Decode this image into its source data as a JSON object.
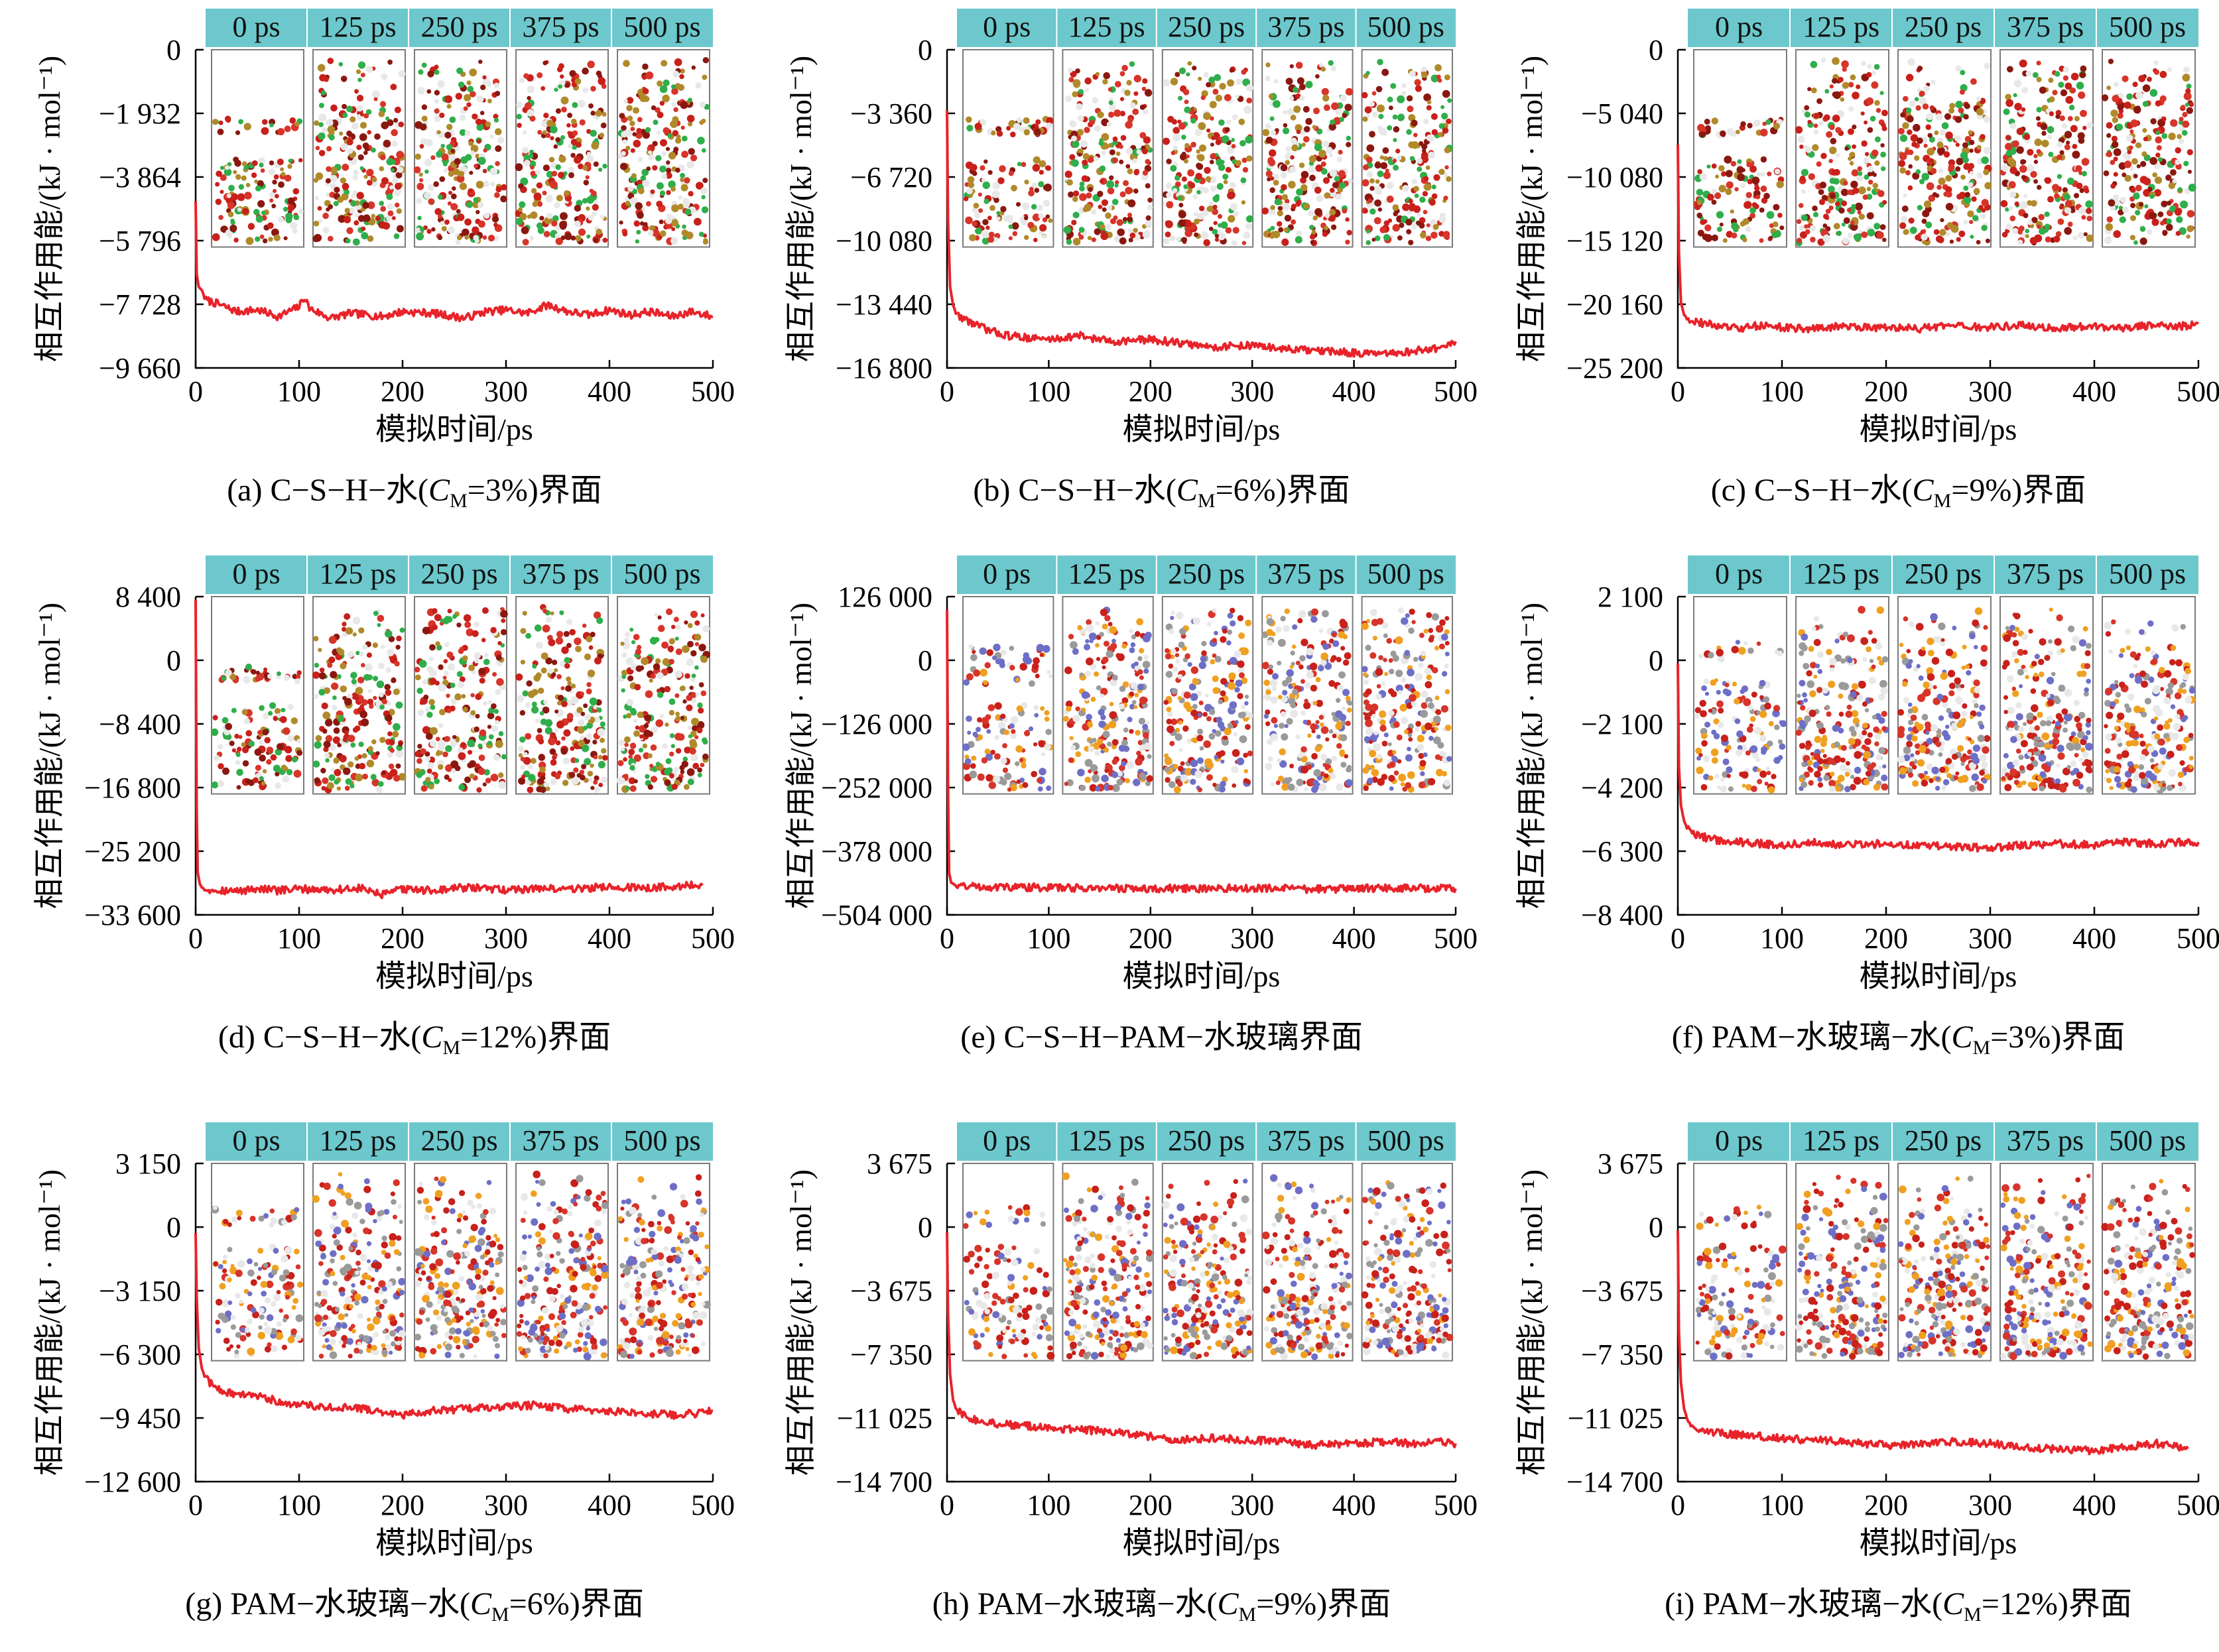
{
  "figure": {
    "common": {
      "xlabel": "模拟时间/ps",
      "ylabel": "相互作用能/(kJ · mol⁻¹)",
      "x_ticks": [
        "0",
        "100",
        "200",
        "300",
        "400",
        "500"
      ],
      "snapshot_labels": [
        "0 ps",
        "125 ps",
        "250 ps",
        "375 ps",
        "500 ps"
      ],
      "line_color": "#e8232a",
      "snapshot_bar_color": "#6cc8cc"
    }
  },
  "chart_data": [
    {
      "panel": "a",
      "type": "line",
      "caption_parts": [
        "(a) C−S−H−水(",
        "C",
        "M",
        "=3%)界面"
      ],
      "xlabel": "模拟时间/ps",
      "ylabel": "相互作用能/(kJ · mol⁻¹)",
      "xlim": [
        0,
        500
      ],
      "ylim": [
        -9660,
        0
      ],
      "y_tick_values": [
        0,
        -1932,
        -3864,
        -5796,
        -7728,
        -9660
      ],
      "y_tick_labels": [
        "0",
        "−1 932",
        "−3 864",
        "−5 796",
        "−7 728",
        "−9 660"
      ],
      "series": [
        {
          "x": [
            0,
            1,
            3,
            6,
            10,
            20,
            40,
            60,
            80,
            100,
            105,
            110,
            130,
            150,
            180,
            200,
            230,
            260,
            280,
            300,
            320,
            340,
            360,
            380,
            400,
            420,
            440,
            460,
            480,
            500
          ],
          "y": [
            -4600,
            -6800,
            -7200,
            -7300,
            -7600,
            -7700,
            -7950,
            -7900,
            -8100,
            -7800,
            -7500,
            -7850,
            -8150,
            -8000,
            -8100,
            -7950,
            -8000,
            -8150,
            -7950,
            -7900,
            -8000,
            -7750,
            -7950,
            -8050,
            -7900,
            -8050,
            -7950,
            -8100,
            -7950,
            -8100
          ]
        }
      ],
      "snapshots": {
        "labels": [
          "0 ps",
          "125 ps",
          "250 ps",
          "375 ps",
          "500 ps"
        ],
        "scheme": "csh"
      }
    },
    {
      "panel": "b",
      "type": "line",
      "caption_parts": [
        "(b) C−S−H−水(",
        "C",
        "M",
        "=6%)界面"
      ],
      "xlabel": "模拟时间/ps",
      "ylabel": "相互作用能/(kJ · mol⁻¹)",
      "xlim": [
        0,
        500
      ],
      "ylim": [
        -16800,
        0
      ],
      "y_tick_values": [
        0,
        -3360,
        -6720,
        -10080,
        -13440,
        -16800
      ],
      "y_tick_labels": [
        "0",
        "−3 360",
        "−6 720",
        "−10 080",
        "−13 440",
        "−16 800"
      ],
      "series": [
        {
          "x": [
            0,
            1,
            3,
            6,
            10,
            20,
            40,
            60,
            80,
            100,
            130,
            160,
            200,
            230,
            260,
            300,
            330,
            360,
            400,
            430,
            460,
            490,
            500
          ],
          "y": [
            -3200,
            -9000,
            -12500,
            -13500,
            -14000,
            -14300,
            -14800,
            -15100,
            -15200,
            -15300,
            -15100,
            -15400,
            -15300,
            -15500,
            -15700,
            -15600,
            -15800,
            -15900,
            -16000,
            -16100,
            -15900,
            -15700,
            -15400
          ]
        }
      ],
      "snapshots": {
        "labels": [
          "0 ps",
          "125 ps",
          "250 ps",
          "375 ps",
          "500 ps"
        ],
        "scheme": "csh"
      }
    },
    {
      "panel": "c",
      "type": "line",
      "caption_parts": [
        "(c) C−S−H−水(",
        "C",
        "M",
        "=9%)界面"
      ],
      "xlabel": "模拟时间/ps",
      "ylabel": "相互作用能/(kJ · mol⁻¹)",
      "xlim": [
        0,
        500
      ],
      "ylim": [
        -25200,
        0
      ],
      "y_tick_values": [
        0,
        -5040,
        -10080,
        -15120,
        -20160,
        -25200
      ],
      "y_tick_labels": [
        "0",
        "−5 040",
        "−10 080",
        "−15 120",
        "−20 160",
        "−25 200"
      ],
      "series": [
        {
          "x": [
            0,
            1,
            3,
            6,
            10,
            20,
            40,
            60,
            80,
            100,
            130,
            160,
            200,
            230,
            260,
            300,
            330,
            360,
            400,
            430,
            460,
            490,
            500
          ],
          "y": [
            -7500,
            -16000,
            -20000,
            -21000,
            -21300,
            -21600,
            -21900,
            -22100,
            -21800,
            -22000,
            -22100,
            -21900,
            -22000,
            -22100,
            -21900,
            -22000,
            -21800,
            -22100,
            -21900,
            -22000,
            -21800,
            -21900,
            -21700
          ]
        }
      ],
      "snapshots": {
        "labels": [
          "0 ps",
          "125 ps",
          "250 ps",
          "375 ps",
          "500 ps"
        ],
        "scheme": "csh"
      }
    },
    {
      "panel": "d",
      "type": "line",
      "caption_parts": [
        "(d) C−S−H−水(",
        "C",
        "M",
        "=12%)界面"
      ],
      "xlabel": "模拟时间/ps",
      "ylabel": "相互作用能/(kJ · mol⁻¹)",
      "xlim": [
        0,
        500
      ],
      "ylim": [
        -33600,
        8400
      ],
      "y_tick_values": [
        8400,
        0,
        -8400,
        -16800,
        -25200,
        -33600
      ],
      "y_tick_labels": [
        "8 400",
        "0",
        "−8 400",
        "−16 800",
        "−25 200",
        "−33 600"
      ],
      "series": [
        {
          "x": [
            0,
            1,
            2,
            4,
            6,
            10,
            20,
            40,
            60,
            80,
            100,
            130,
            160,
            180,
            200,
            230,
            260,
            300,
            330,
            360,
            400,
            430,
            460,
            490
          ],
          "y": [
            8000,
            -20000,
            -28000,
            -29500,
            -30000,
            -30200,
            -30300,
            -30500,
            -30100,
            -30400,
            -30200,
            -30300,
            -30100,
            -31000,
            -30200,
            -30400,
            -30000,
            -30300,
            -30100,
            -30200,
            -29900,
            -30100,
            -29800,
            -29700
          ]
        }
      ],
      "snapshots": {
        "labels": [
          "0 ps",
          "125 ps",
          "250 ps",
          "375 ps",
          "500 ps"
        ],
        "scheme": "csh"
      }
    },
    {
      "panel": "e",
      "type": "line",
      "caption_parts": [
        "(e) C−S−H−PAM−水玻璃界面"
      ],
      "xlabel": "模拟时间/ps",
      "ylabel": "相互作用能/(kJ · mol⁻¹)",
      "xlim": [
        0,
        500
      ],
      "ylim": [
        -504000,
        126000
      ],
      "y_tick_values": [
        126000,
        0,
        -126000,
        -252000,
        -378000,
        -504000
      ],
      "y_tick_labels": [
        "126 000",
        "0",
        "−126 000",
        "−252 000",
        "−378 000",
        "−504 000"
      ],
      "series": [
        {
          "x": [
            0,
            1,
            2,
            4,
            8,
            15,
            30,
            60,
            100,
            150,
            200,
            250,
            300,
            350,
            400,
            450,
            500
          ],
          "y": [
            100000,
            -250000,
            -420000,
            -440000,
            -445000,
            -446000,
            -448000,
            -449000,
            -450000,
            -451000,
            -452000,
            -452000,
            -451000,
            -453000,
            -452000,
            -451000,
            -452000
          ]
        }
      ],
      "snapshots": {
        "labels": [
          "0 ps",
          "125 ps",
          "250 ps",
          "375 ps",
          "500 ps"
        ],
        "scheme": "cshpam"
      }
    },
    {
      "panel": "f",
      "type": "line",
      "caption_parts": [
        "(f) PAM−水玻璃−水(",
        "C",
        "M",
        "=3%)界面"
      ],
      "xlabel": "模拟时间/ps",
      "ylabel": "相互作用能/(kJ · mol⁻¹)",
      "xlim": [
        0,
        500
      ],
      "ylim": [
        -8400,
        2100
      ],
      "y_tick_values": [
        2100,
        0,
        -2100,
        -4200,
        -6300,
        -8400
      ],
      "y_tick_labels": [
        "2 100",
        "0",
        "−2 100",
        "−4 200",
        "−6 300",
        "−8 400"
      ],
      "series": [
        {
          "x": [
            0,
            1,
            3,
            6,
            10,
            20,
            40,
            60,
            80,
            100,
            130,
            160,
            200,
            230,
            260,
            300,
            330,
            360,
            400,
            430,
            460,
            490,
            500
          ],
          "y": [
            -100,
            -3500,
            -4800,
            -5300,
            -5600,
            -5800,
            -5950,
            -6000,
            -6050,
            -6100,
            -6000,
            -6100,
            -6050,
            -6100,
            -6150,
            -6200,
            -6100,
            -6050,
            -6100,
            -6000,
            -6050,
            -6000,
            -6000
          ]
        }
      ],
      "snapshots": {
        "labels": [
          "0 ps",
          "125 ps",
          "250 ps",
          "375 ps",
          "500 ps"
        ],
        "scheme": "pam"
      }
    },
    {
      "panel": "g",
      "type": "line",
      "caption_parts": [
        "(g) PAM−水玻璃−水(",
        "C",
        "M",
        "=6%)界面"
      ],
      "xlabel": "模拟时间/ps",
      "ylabel": "相互作用能/(kJ · mol⁻¹)",
      "xlim": [
        0,
        500
      ],
      "ylim": [
        -12600,
        3150
      ],
      "y_tick_values": [
        3150,
        0,
        -3150,
        -6300,
        -9450,
        -12600
      ],
      "y_tick_labels": [
        "3 150",
        "0",
        "−3 150",
        "−6 300",
        "−9 450",
        "−12 600"
      ],
      "series": [
        {
          "x": [
            0,
            1,
            3,
            6,
            10,
            20,
            40,
            60,
            80,
            100,
            130,
            160,
            200,
            230,
            260,
            300,
            330,
            360,
            400,
            430,
            460,
            490,
            500
          ],
          "y": [
            -300,
            -3500,
            -6000,
            -7000,
            -7500,
            -8000,
            -8300,
            -8400,
            -8600,
            -8800,
            -8900,
            -9000,
            -9300,
            -9100,
            -9000,
            -8900,
            -8800,
            -9000,
            -9100,
            -9200,
            -9300,
            -9200,
            -9100
          ]
        }
      ],
      "snapshots": {
        "labels": [
          "0 ps",
          "125 ps",
          "250 ps",
          "375 ps",
          "500 ps"
        ],
        "scheme": "pam"
      }
    },
    {
      "panel": "h",
      "type": "line",
      "caption_parts": [
        "(h) PAM−水玻璃−水(",
        "C",
        "M",
        "=9%)界面"
      ],
      "xlabel": "模拟时间/ps",
      "ylabel": "相互作用能/(kJ · mol⁻¹)",
      "xlim": [
        0,
        500
      ],
      "ylim": [
        -14700,
        3675
      ],
      "y_tick_values": [
        3675,
        0,
        -3675,
        -7350,
        -11025,
        -14700
      ],
      "y_tick_labels": [
        "3 675",
        "0",
        "−3 675",
        "−7 350",
        "−11 025",
        "−14 700"
      ],
      "series": [
        {
          "x": [
            0,
            1,
            3,
            6,
            10,
            20,
            40,
            60,
            80,
            100,
            130,
            160,
            200,
            230,
            260,
            300,
            330,
            360,
            400,
            430,
            460,
            490,
            500
          ],
          "y": [
            -300,
            -5000,
            -8500,
            -10000,
            -10600,
            -11000,
            -11300,
            -11400,
            -11500,
            -11600,
            -11700,
            -11800,
            -12100,
            -12300,
            -12200,
            -12300,
            -12400,
            -12600,
            -12500,
            -12400,
            -12500,
            -12400,
            -12500
          ]
        }
      ],
      "snapshots": {
        "labels": [
          "0 ps",
          "125 ps",
          "250 ps",
          "375 ps",
          "500 ps"
        ],
        "scheme": "pam"
      }
    },
    {
      "panel": "i",
      "type": "line",
      "caption_parts": [
        "(i) PAM−水玻璃−水(",
        "C",
        "M",
        "=12%)界面"
      ],
      "xlabel": "模拟时间/ps",
      "ylabel": "相互作用能/(kJ · mol⁻¹)",
      "xlim": [
        0,
        500
      ],
      "ylim": [
        -14700,
        3675
      ],
      "y_tick_values": [
        3675,
        0,
        -3675,
        -7350,
        -11025,
        -14700
      ],
      "y_tick_labels": [
        "3 675",
        "0",
        "−3 675",
        "−7 350",
        "−11 025",
        "−14 700"
      ],
      "series": [
        {
          "x": [
            0,
            1,
            3,
            6,
            10,
            20,
            40,
            60,
            80,
            100,
            130,
            160,
            200,
            230,
            260,
            300,
            330,
            360,
            400,
            430,
            460,
            490
          ],
          "y": [
            -200,
            -6000,
            -9000,
            -10500,
            -11200,
            -11700,
            -11900,
            -12000,
            -12100,
            -12200,
            -12300,
            -12400,
            -12600,
            -12500,
            -12400,
            -12500,
            -12700,
            -12800,
            -12900,
            -12700,
            -12500,
            -12800
          ]
        }
      ],
      "snapshots": {
        "labels": [
          "0 ps",
          "125 ps",
          "250 ps",
          "375 ps",
          "500 ps"
        ],
        "scheme": "pam"
      }
    }
  ]
}
